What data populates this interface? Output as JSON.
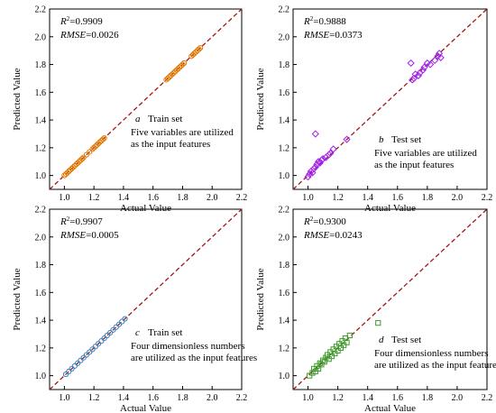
{
  "figure": {
    "xlabel": "Actual Value",
    "ylabel": "Predicted Value"
  },
  "style": {
    "diagonal_color": "#a31515",
    "axis_color": "#000000"
  },
  "chart_data": [
    {
      "type": "scatter",
      "panel": "a",
      "set_label": "Train set",
      "r2": "=0.9909",
      "rmse": "=0.0026",
      "note_lines": [
        "Five variables are utilized",
        "as  the input features"
      ],
      "xlim": [
        0.9,
        2.2
      ],
      "ylim": [
        0.9,
        2.2
      ],
      "xticks": [
        1.0,
        1.2,
        1.4,
        1.6,
        1.8,
        2.0,
        2.2
      ],
      "yticks": [
        1.0,
        1.2,
        1.4,
        1.6,
        1.8,
        2.0,
        2.2
      ],
      "tick_labels": [
        "1.0",
        "1.2",
        "1.4",
        "1.6",
        "1.8",
        "2.0",
        "2.2"
      ],
      "marker": "circle",
      "marker_color": "#e07b00",
      "x": [
        1.0,
        1.01,
        1.02,
        1.03,
        1.04,
        1.05,
        1.06,
        1.07,
        1.08,
        1.09,
        1.1,
        1.11,
        1.12,
        1.13,
        1.15,
        1.17,
        1.19,
        1.2,
        1.21,
        1.22,
        1.23,
        1.24,
        1.25,
        1.26,
        1.27,
        1.69,
        1.7,
        1.71,
        1.72,
        1.73,
        1.74,
        1.75,
        1.76,
        1.77,
        1.78,
        1.79,
        1.8,
        1.81,
        1.86,
        1.87,
        1.88,
        1.89,
        1.9,
        1.91,
        1.92
      ],
      "y": [
        1.0,
        1.01,
        1.02,
        1.03,
        1.04,
        1.05,
        1.06,
        1.07,
        1.08,
        1.09,
        1.1,
        1.11,
        1.12,
        1.13,
        1.15,
        1.17,
        1.19,
        1.2,
        1.21,
        1.22,
        1.23,
        1.24,
        1.25,
        1.26,
        1.27,
        1.69,
        1.7,
        1.71,
        1.72,
        1.73,
        1.74,
        1.75,
        1.76,
        1.77,
        1.78,
        1.79,
        1.8,
        1.81,
        1.86,
        1.87,
        1.88,
        1.89,
        1.9,
        1.91,
        1.92
      ]
    },
    {
      "type": "scatter",
      "panel": "b",
      "set_label": "Test set",
      "r2": "=0.9888",
      "rmse": "=0.0373",
      "note_lines": [
        "Five variables are utilized",
        "as the input features"
      ],
      "xlim": [
        0.9,
        2.2
      ],
      "ylim": [
        0.9,
        2.2
      ],
      "xticks": [
        1.0,
        1.2,
        1.4,
        1.6,
        1.8,
        2.0,
        2.2
      ],
      "yticks": [
        1.0,
        1.2,
        1.4,
        1.6,
        1.8,
        2.0,
        2.2
      ],
      "tick_labels": [
        "1.0",
        "1.2",
        "1.4",
        "1.6",
        "1.8",
        "2.0",
        "2.2"
      ],
      "marker": "diamond",
      "marker_color": "#a020f0",
      "x": [
        1.0,
        1.01,
        1.02,
        1.03,
        1.04,
        1.05,
        1.06,
        1.07,
        1.08,
        1.09,
        1.1,
        1.12,
        1.14,
        1.15,
        1.17,
        1.05,
        1.26,
        1.69,
        1.7,
        1.71,
        1.72,
        1.74,
        1.75,
        1.77,
        1.78,
        1.8,
        1.82,
        1.85,
        1.87,
        1.88,
        1.89
      ],
      "y": [
        0.99,
        1.01,
        1.03,
        1.02,
        1.05,
        1.06,
        1.08,
        1.1,
        1.09,
        1.11,
        1.12,
        1.13,
        1.15,
        1.16,
        1.19,
        1.3,
        1.26,
        1.81,
        1.69,
        1.7,
        1.73,
        1.72,
        1.74,
        1.76,
        1.78,
        1.81,
        1.8,
        1.83,
        1.86,
        1.88,
        1.85
      ]
    },
    {
      "type": "scatter",
      "panel": "c",
      "set_label": "Train set",
      "r2": "=0.9907",
      "rmse": "=0.0005",
      "note_lines": [
        "Four dimensionless numbers",
        "are utilized as the input features"
      ],
      "xlim": [
        0.9,
        2.2
      ],
      "ylim": [
        0.9,
        2.2
      ],
      "xticks": [
        1.0,
        1.2,
        1.4,
        1.6,
        1.8,
        2.0,
        2.2
      ],
      "yticks": [
        1.0,
        1.2,
        1.4,
        1.6,
        1.8,
        2.0,
        2.2
      ],
      "tick_labels": [
        "1.0",
        "1.2",
        "1.4",
        "1.6",
        "1.8",
        "2.0",
        "2.2"
      ],
      "marker": "circle",
      "marker_color": "#3a7fbf",
      "x": [
        1.01,
        1.03,
        1.05,
        1.07,
        1.09,
        1.11,
        1.13,
        1.15,
        1.17,
        1.19,
        1.21,
        1.23,
        1.25,
        1.27,
        1.29,
        1.31,
        1.33,
        1.35,
        1.37,
        1.39,
        1.41
      ],
      "y": [
        1.01,
        1.03,
        1.05,
        1.07,
        1.09,
        1.11,
        1.13,
        1.15,
        1.17,
        1.19,
        1.21,
        1.23,
        1.25,
        1.27,
        1.29,
        1.31,
        1.33,
        1.35,
        1.37,
        1.39,
        1.41
      ]
    },
    {
      "type": "scatter",
      "panel": "d",
      "set_label": "Test set",
      "r2": "=0.9300",
      "rmse": "=0.0243",
      "note_lines": [
        "Four dimensionless numbers",
        "are utilized as the input features"
      ],
      "xlim": [
        0.9,
        2.2
      ],
      "ylim": [
        0.9,
        2.2
      ],
      "xticks": [
        1.0,
        1.2,
        1.4,
        1.6,
        1.8,
        2.0,
        2.2
      ],
      "yticks": [
        1.0,
        1.2,
        1.4,
        1.6,
        1.8,
        2.0,
        2.2
      ],
      "tick_labels": [
        "1.0",
        "1.2",
        "1.4",
        "1.6",
        "1.8",
        "2.0",
        "2.2"
      ],
      "marker": "square",
      "marker_color": "#3a9a2a",
      "x": [
        1.01,
        1.03,
        1.04,
        1.05,
        1.06,
        1.07,
        1.08,
        1.09,
        1.1,
        1.11,
        1.12,
        1.13,
        1.14,
        1.15,
        1.16,
        1.17,
        1.18,
        1.19,
        1.2,
        1.21,
        1.22,
        1.23,
        1.24,
        1.25,
        1.26,
        1.28,
        1.47
      ],
      "y": [
        1.0,
        1.02,
        1.05,
        1.03,
        1.07,
        1.05,
        1.09,
        1.08,
        1.11,
        1.1,
        1.13,
        1.15,
        1.12,
        1.17,
        1.14,
        1.19,
        1.16,
        1.21,
        1.18,
        1.23,
        1.2,
        1.25,
        1.22,
        1.27,
        1.24,
        1.29,
        1.38
      ]
    }
  ]
}
